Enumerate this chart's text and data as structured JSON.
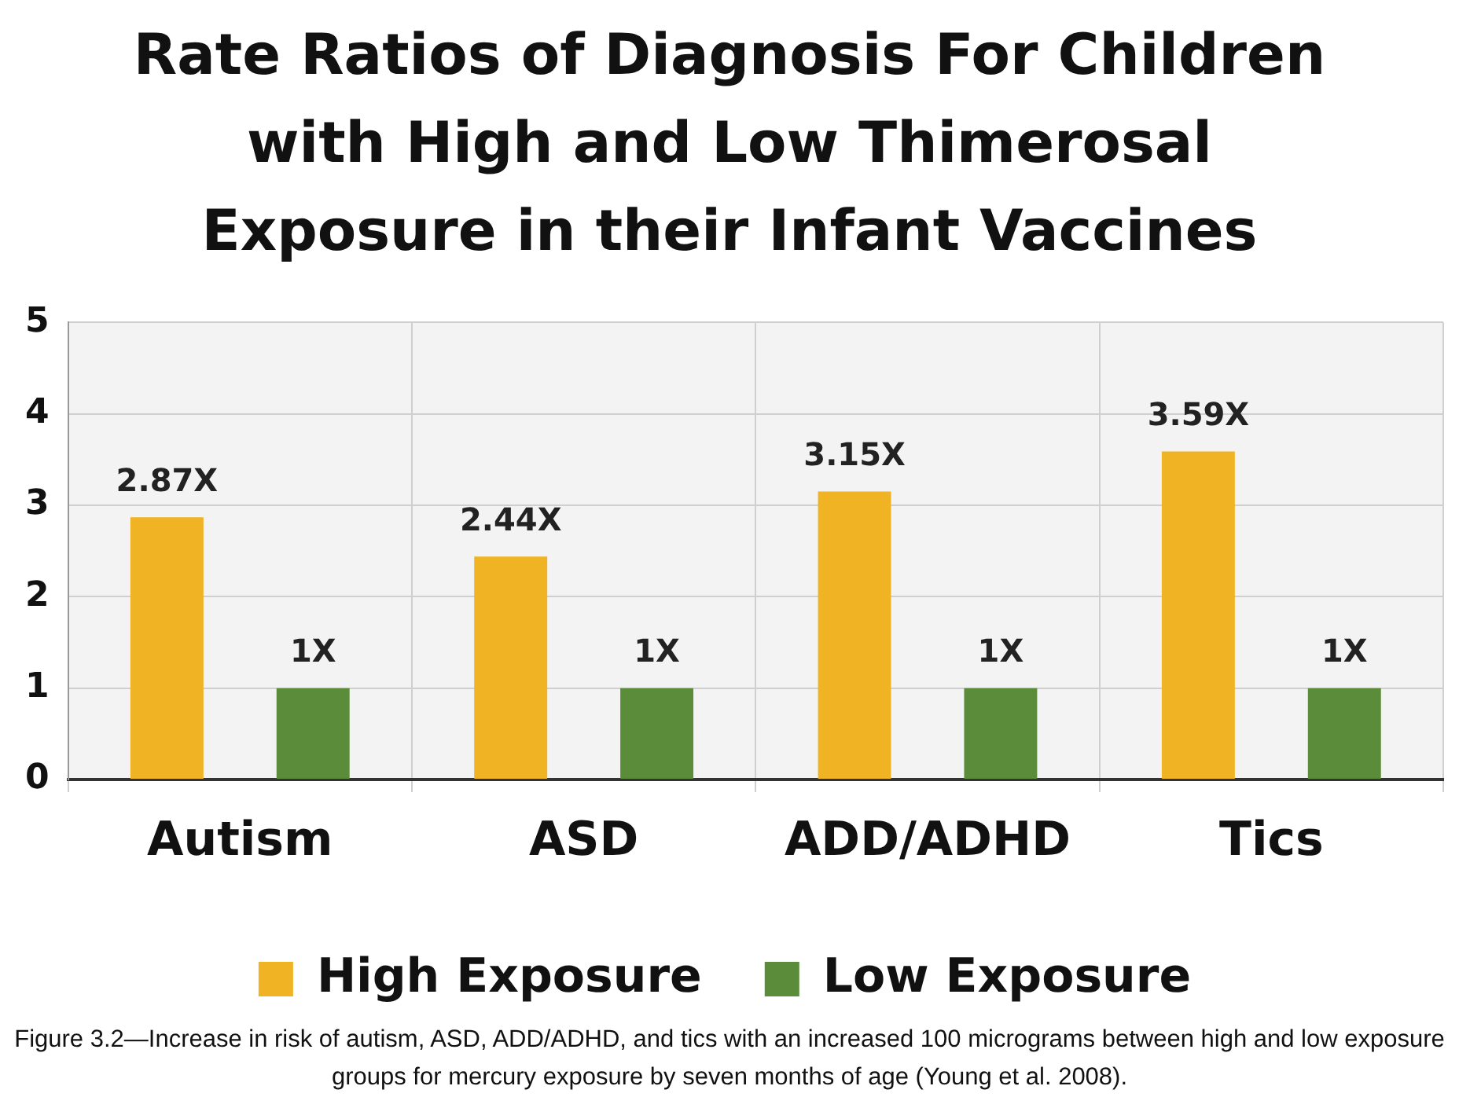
{
  "chart_data": {
    "type": "bar",
    "title": "Rate Ratios of Diagnosis For Children with High and Low Thimerosal Exposure in their Infant Vaccines",
    "categories": [
      "Autism",
      "ASD",
      "ADD/ADHD",
      "Tics"
    ],
    "series": [
      {
        "name": "High Exposure",
        "color": "#f0b323",
        "values": [
          2.87,
          2.44,
          3.15,
          3.59
        ],
        "value_labels": [
          "2.87X",
          "2.44X",
          "3.15X",
          "3.59X"
        ]
      },
      {
        "name": "Low Exposure",
        "color": "#5b8c3a",
        "values": [
          1,
          1,
          1,
          1
        ],
        "value_labels": [
          "1X",
          "1X",
          "1X",
          "1X"
        ]
      }
    ],
    "ylim": [
      0,
      5
    ],
    "yticks": [
      0,
      1,
      2,
      3,
      4,
      5
    ],
    "grid": true,
    "legend": "bottom",
    "annotations": [
      "Figure 3.2—Increase in risk of autism, ASD, ADD/ADHD, and tics with an increased 100 micrograms between high and low exposure groups for mercury exposure by seven months of age (Young et al. 2008)."
    ]
  }
}
